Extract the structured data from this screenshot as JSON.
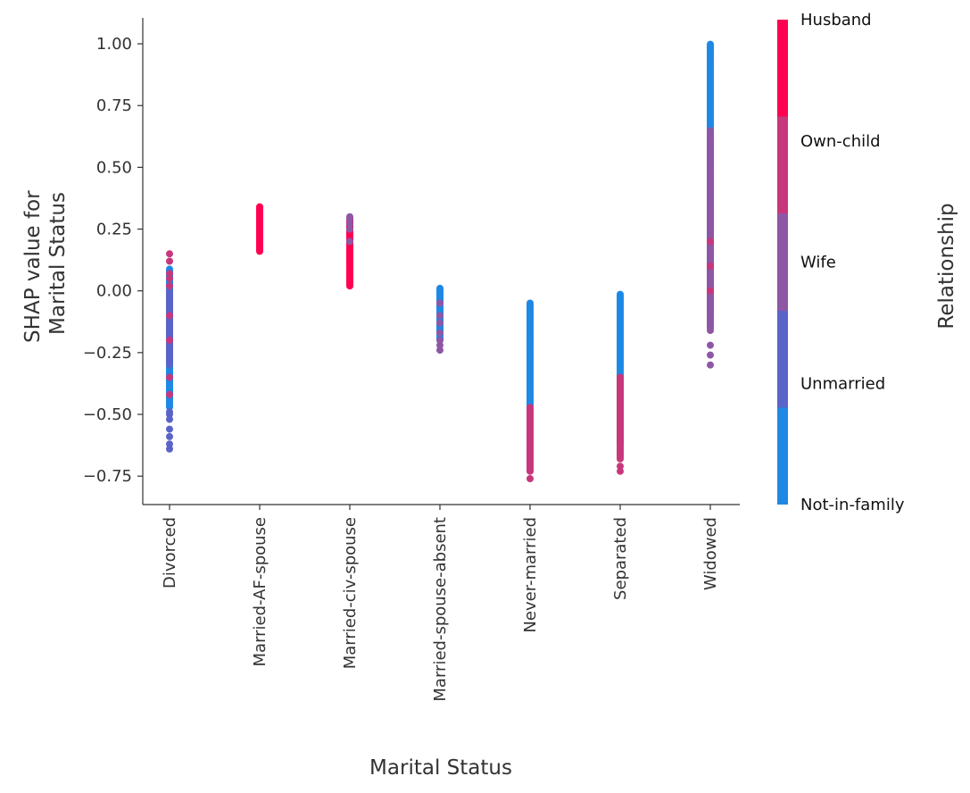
{
  "chart_data": {
    "type": "scatter",
    "xlabel": "Marital Status",
    "ylabel_lines": [
      "SHAP value for",
      "Marital Status"
    ],
    "categories": [
      "Divorced",
      "Married-AF-spouse",
      "Married-civ-spouse",
      "Married-spouse-absent",
      "Never-married",
      "Separated",
      "Widowed"
    ],
    "ylim": [
      -0.865,
      1.105
    ],
    "yticks": [
      {
        "value": 1.0,
        "label": "1.00"
      },
      {
        "value": 0.75,
        "label": "0.75"
      },
      {
        "value": 0.5,
        "label": "0.50"
      },
      {
        "value": 0.25,
        "label": "0.25"
      },
      {
        "value": 0.0,
        "label": "0.00"
      },
      {
        "value": -0.25,
        "label": "−0.25"
      },
      {
        "value": -0.5,
        "label": "−0.50"
      },
      {
        "value": -0.75,
        "label": "−0.75"
      }
    ],
    "colorbar": {
      "title": "Relationship",
      "labels": [
        "Husband",
        "Own-child",
        "Wife",
        "Unmarried",
        "Not-in-family"
      ],
      "colors": [
        "#ff0052",
        "#c8377c",
        "#8e57a5",
        "#5a64c8",
        "#1e88e5"
      ]
    },
    "point_color": "#1e88e5",
    "point_groups": [
      {
        "category": "Divorced",
        "y_range": [
          -0.47,
          0.09
        ],
        "color": "Not-in-family"
      },
      {
        "category": "Divorced",
        "y_range": [
          -0.3,
          0.0
        ],
        "color": "Unmarried"
      },
      {
        "category": "Divorced",
        "points": [
          0.15,
          0.12,
          0.07,
          0.05,
          0.02,
          -0.1,
          -0.2,
          -0.35,
          -0.42
        ],
        "color": "Own-child"
      },
      {
        "category": "Divorced",
        "points": [
          -0.5,
          -0.52,
          -0.56,
          -0.59,
          -0.62,
          -0.64,
          -0.49
        ],
        "color": "Unmarried"
      },
      {
        "category": "Married-AF-spouse",
        "y_range": [
          0.16,
          0.34
        ],
        "color": "Husband"
      },
      {
        "category": "Married-civ-spouse",
        "y_range": [
          0.02,
          0.3
        ],
        "color": "Husband"
      },
      {
        "category": "Married-civ-spouse",
        "points": [
          0.3,
          0.29,
          0.27,
          0.25,
          0.2
        ],
        "color": "Wife"
      },
      {
        "category": "Married-spouse-absent",
        "y_range": [
          -0.2,
          0.01
        ],
        "color": "Not-in-family"
      },
      {
        "category": "Married-spouse-absent",
        "points": [
          -0.05,
          -0.1,
          -0.13,
          -0.17,
          -0.2,
          -0.22,
          -0.24
        ],
        "color": "Wife"
      },
      {
        "category": "Never-married",
        "y_range": [
          -0.47,
          -0.05
        ],
        "color": "Not-in-family"
      },
      {
        "category": "Never-married",
        "y_range": [
          -0.73,
          -0.47
        ],
        "color": "Own-child"
      },
      {
        "category": "Never-married",
        "points": [
          -0.76,
          -0.7
        ],
        "color": "Own-child"
      },
      {
        "category": "Separated",
        "y_range": [
          -0.62,
          -0.01
        ],
        "color": "Not-in-family"
      },
      {
        "category": "Separated",
        "y_range": [
          -0.68,
          -0.35
        ],
        "color": "Own-child"
      },
      {
        "category": "Separated",
        "points": [
          -0.71,
          -0.73,
          -0.37
        ],
        "color": "Own-child"
      },
      {
        "category": "Widowed",
        "y_range": [
          -0.1,
          1.0
        ],
        "color": "Not-in-family"
      },
      {
        "category": "Widowed",
        "y_range": [
          -0.15,
          0.65
        ],
        "color": "Wife"
      },
      {
        "category": "Widowed",
        "points": [
          -0.22,
          -0.26,
          -0.3,
          -0.16,
          -0.12
        ],
        "color": "Wife"
      },
      {
        "category": "Widowed",
        "points": [
          0.0,
          0.1,
          0.2
        ],
        "color": "Own-child"
      }
    ]
  }
}
